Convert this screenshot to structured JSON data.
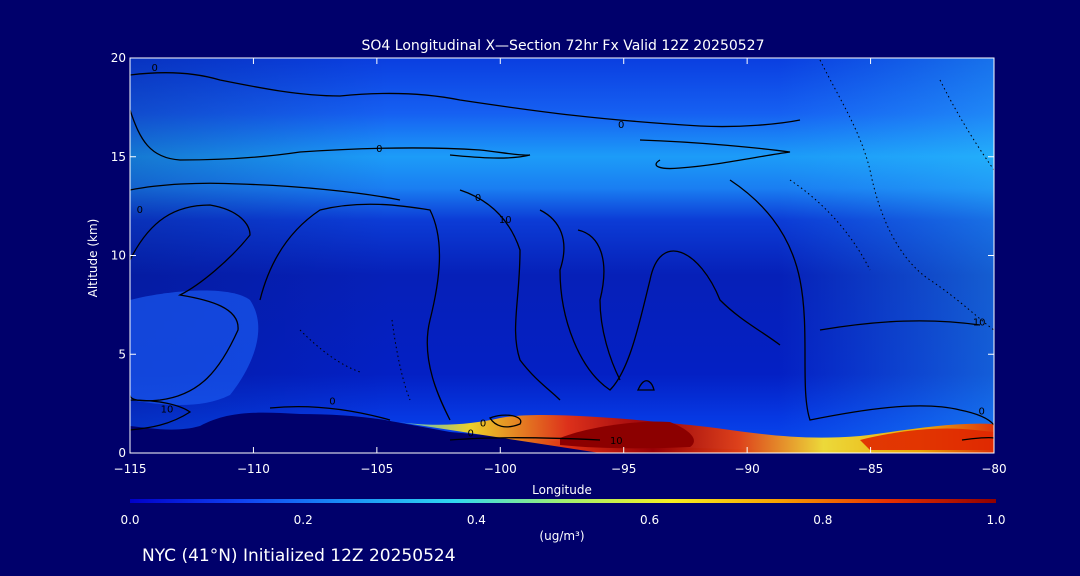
{
  "chart_data": {
    "type": "heatmap",
    "title": "SO4 Longitudinal X—Section 72hr  Fx Valid 12Z 20250527",
    "xlabel": "Longitude",
    "ylabel": "Altitude (km)",
    "xlim": [
      -115,
      -80
    ],
    "ylim": [
      0,
      20
    ],
    "x_ticks": [
      -115,
      -110,
      -105,
      -100,
      -95,
      -90,
      -85,
      -80
    ],
    "y_ticks": [
      0,
      5,
      10,
      15,
      20
    ],
    "colorbar": {
      "label": "(ug/m³)",
      "range": [
        0.0,
        1.0
      ],
      "ticks": [
        "0.0",
        "0.2",
        "0.4",
        "0.6",
        "0.8",
        "1.0"
      ],
      "colors": [
        "#0000c8",
        "#1040f0",
        "#1a90f8",
        "#30d8f0",
        "#a0f070",
        "#f8f020",
        "#f8a000",
        "#e83000",
        "#900000"
      ]
    },
    "plumes": [
      {
        "lon": -95,
        "alt": 0.8,
        "value": 1.0
      },
      {
        "lon": -82,
        "alt": 0.6,
        "value": 0.85
      },
      {
        "lon": -100,
        "alt": 1.2,
        "value": 0.7
      }
    ],
    "contour_labels": [
      {
        "text": "0",
        "lon": -114.0,
        "alt": 19.5
      },
      {
        "text": "0",
        "lon": -95.1,
        "alt": 16.6
      },
      {
        "text": "0",
        "lon": -104.9,
        "alt": 15.4
      },
      {
        "text": "0",
        "lon": -100.9,
        "alt": 12.9
      },
      {
        "text": "10",
        "lon": -99.8,
        "alt": 11.8
      },
      {
        "text": "0",
        "lon": -114.6,
        "alt": 12.3
      },
      {
        "text": "10",
        "lon": -80.6,
        "alt": 6.6
      },
      {
        "text": "0",
        "lon": -106.8,
        "alt": 2.6
      },
      {
        "text": "10",
        "lon": -113.5,
        "alt": 2.2
      },
      {
        "text": "0",
        "lon": -101.2,
        "alt": 1.0
      },
      {
        "text": "10",
        "lon": -95.3,
        "alt": 0.6
      },
      {
        "text": "0",
        "lon": -80.5,
        "alt": 2.1
      },
      {
        "text": "0",
        "lon": -100.7,
        "alt": 1.5
      }
    ]
  },
  "footer": {
    "location": "NYC (41°N) Initialized 12Z 20250524"
  }
}
